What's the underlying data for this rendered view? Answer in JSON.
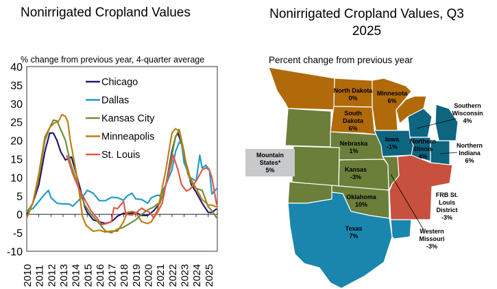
{
  "chart_data": [
    {
      "type": "line",
      "title": "Nonirrigated Cropland Values",
      "ylabel": "% change from previous year, 4-quarter average",
      "xlim": [
        2010,
        2025.75
      ],
      "ylim": [
        -10,
        40
      ],
      "yticks": [
        -10,
        -5,
        0,
        5,
        10,
        15,
        20,
        25,
        30,
        35,
        40
      ],
      "xticks": [
        "2010",
        "2011",
        "2012",
        "2013",
        "2014",
        "2015",
        "2016",
        "2017",
        "2018",
        "2019",
        "2020",
        "2021",
        "2022",
        "2023",
        "2024",
        "2025"
      ],
      "legend": "top-center",
      "grid": false,
      "series": [
        {
          "name": "Chicago",
          "color": "#1f1a6e",
          "points": [
            [
              2010,
              0
            ],
            [
              2010.5,
              3
            ],
            [
              2011,
              8
            ],
            [
              2011.5,
              17
            ],
            [
              2011.9,
              22
            ],
            [
              2012.2,
              22
            ],
            [
              2012.5,
              20
            ],
            [
              2012.8,
              17
            ],
            [
              2013.2,
              14.7
            ],
            [
              2013.5,
              15.3
            ],
            [
              2013.7,
              15.5
            ],
            [
              2014,
              12
            ],
            [
              2014.5,
              6
            ],
            [
              2014.8,
              2
            ],
            [
              2015,
              0.5
            ],
            [
              2015.5,
              -1.5
            ],
            [
              2016,
              -2
            ],
            [
              2016.5,
              -2.5
            ],
            [
              2017,
              -2
            ],
            [
              2017.5,
              -0.5
            ],
            [
              2018,
              0.3
            ],
            [
              2018.5,
              0.2
            ],
            [
              2019,
              0.5
            ],
            [
              2019.5,
              -0.3
            ],
            [
              2020,
              -0.3
            ],
            [
              2020.5,
              1
            ],
            [
              2021,
              3
            ],
            [
              2021.5,
              8
            ],
            [
              2022,
              17
            ],
            [
              2022.3,
              21
            ],
            [
              2022.5,
              22
            ],
            [
              2022.8,
              19
            ],
            [
              2023.2,
              13
            ],
            [
              2023.6,
              8
            ],
            [
              2024,
              6
            ],
            [
              2024.5,
              3
            ],
            [
              2025,
              0.5
            ],
            [
              2025.3,
              0.5
            ],
            [
              2025.7,
              1.5
            ]
          ]
        },
        {
          "name": "Dallas",
          "color": "#1e9bc6",
          "points": [
            [
              2010,
              1
            ],
            [
              2010.5,
              1.5
            ],
            [
              2011,
              3.5
            ],
            [
              2011.5,
              5.5
            ],
            [
              2011.8,
              6.5
            ],
            [
              2012,
              4.5
            ],
            [
              2012.5,
              3
            ],
            [
              2013,
              2.8
            ],
            [
              2013.5,
              2.8
            ],
            [
              2013.8,
              2.2
            ],
            [
              2014.2,
              3.5
            ],
            [
              2014.8,
              5.5
            ],
            [
              2015,
              6.5
            ],
            [
              2015.5,
              5.7
            ],
            [
              2016,
              3.7
            ],
            [
              2016.5,
              3.7
            ],
            [
              2017,
              4.6
            ],
            [
              2017.5,
              4.5
            ],
            [
              2018,
              3.8
            ],
            [
              2018.3,
              5
            ],
            [
              2018.7,
              5.7
            ],
            [
              2019,
              4.2
            ],
            [
              2019.5,
              4
            ],
            [
              2020,
              3
            ],
            [
              2020.3,
              4.5
            ],
            [
              2020.8,
              5.2
            ],
            [
              2021,
              5
            ],
            [
              2021.5,
              8
            ],
            [
              2022,
              12
            ],
            [
              2022.3,
              17
            ],
            [
              2022.6,
              19.5
            ],
            [
              2022.8,
              19
            ],
            [
              2023,
              14
            ],
            [
              2023.5,
              10
            ],
            [
              2024,
              9
            ],
            [
              2024.3,
              16
            ],
            [
              2024.5,
              12.5
            ],
            [
              2024.8,
              13.3
            ],
            [
              2025.1,
              12
            ],
            [
              2025.3,
              5.5
            ],
            [
              2025.7,
              7
            ]
          ]
        },
        {
          "name": "Kansas City",
          "color": "#6e8f3a",
          "points": [
            [
              2010,
              0.5
            ],
            [
              2010.5,
              3
            ],
            [
              2011,
              10
            ],
            [
              2011.5,
              20
            ],
            [
              2011.9,
              23.5
            ],
            [
              2012.2,
              25.5
            ],
            [
              2012.5,
              25.3
            ],
            [
              2012.8,
              23
            ],
            [
              2013.2,
              20
            ],
            [
              2013.6,
              14
            ],
            [
              2014,
              10
            ],
            [
              2014.5,
              5
            ],
            [
              2014.8,
              2.5
            ],
            [
              2015.2,
              0.5
            ],
            [
              2015.6,
              -1
            ],
            [
              2016,
              -2.5
            ],
            [
              2016.5,
              -4.5
            ],
            [
              2017,
              -5
            ],
            [
              2017.5,
              -4
            ],
            [
              2018,
              -3.5
            ],
            [
              2018.5,
              -2.5
            ],
            [
              2019,
              -1.5
            ],
            [
              2019.5,
              0
            ],
            [
              2020,
              1.2
            ],
            [
              2020.5,
              2
            ],
            [
              2020.8,
              2.8
            ],
            [
              2021,
              3
            ],
            [
              2021.5,
              8
            ],
            [
              2022,
              16
            ],
            [
              2022.3,
              21
            ],
            [
              2022.6,
              23
            ],
            [
              2023,
              17
            ],
            [
              2023.3,
              11
            ],
            [
              2023.7,
              8
            ],
            [
              2024,
              7
            ],
            [
              2024.5,
              6.5
            ],
            [
              2025,
              2
            ],
            [
              2025.3,
              1
            ],
            [
              2025.7,
              -1
            ]
          ]
        },
        {
          "name": "Minneapolis",
          "color": "#c07d12",
          "points": [
            [
              2010,
              -1
            ],
            [
              2010.5,
              3
            ],
            [
              2011,
              11
            ],
            [
              2011.5,
              21
            ],
            [
              2011.9,
              23.5
            ],
            [
              2012.3,
              24.8
            ],
            [
              2012.6,
              25
            ],
            [
              2012.9,
              27
            ],
            [
              2013.2,
              26.5
            ],
            [
              2013.4,
              25
            ],
            [
              2013.6,
              20
            ],
            [
              2014,
              13
            ],
            [
              2014.3,
              7
            ],
            [
              2014.6,
              -0.5
            ],
            [
              2014.9,
              -3
            ],
            [
              2015.2,
              -3.8
            ],
            [
              2015.5,
              -4.6
            ],
            [
              2016,
              -4.3
            ],
            [
              2016.5,
              -4.8
            ],
            [
              2017,
              -4.5
            ],
            [
              2017.5,
              -4.6
            ],
            [
              2018,
              -2
            ],
            [
              2018.3,
              0.5
            ],
            [
              2018.7,
              0.8
            ],
            [
              2019,
              0.5
            ],
            [
              2019.5,
              -2
            ],
            [
              2020,
              -2.5
            ],
            [
              2020.3,
              -2
            ],
            [
              2020.8,
              1
            ],
            [
              2021,
              4
            ],
            [
              2021.5,
              12
            ],
            [
              2022,
              22
            ],
            [
              2022.3,
              23.2
            ],
            [
              2022.6,
              22.5
            ],
            [
              2023,
              16
            ],
            [
              2023.5,
              10
            ],
            [
              2024,
              7
            ],
            [
              2024.5,
              4
            ],
            [
              2025,
              2.5
            ],
            [
              2025.3,
              2.5
            ],
            [
              2025.7,
              2
            ]
          ]
        },
        {
          "name": "St. Louis",
          "color": "#e0584a",
          "points": [
            [
              2013.3,
              16
            ],
            [
              2013.8,
              11
            ],
            [
              2014.3,
              7
            ],
            [
              2014.8,
              4
            ],
            [
              2015.3,
              1
            ],
            [
              2015.8,
              -1
            ],
            [
              2016.2,
              -2.8
            ],
            [
              2016.6,
              -2.5
            ],
            [
              2017,
              -2
            ],
            [
              2017.2,
              1.8
            ],
            [
              2017.5,
              1.5
            ],
            [
              2018,
              3.5
            ],
            [
              2018.2,
              0
            ],
            [
              2018.7,
              -0.2
            ],
            [
              2019,
              0.3
            ],
            [
              2019.5,
              1.7
            ],
            [
              2019.8,
              1
            ],
            [
              2020.2,
              0.5
            ],
            [
              2020.5,
              -1
            ],
            [
              2020.8,
              0.5
            ],
            [
              2021.2,
              3
            ],
            [
              2021.5,
              8
            ],
            [
              2021.9,
              13
            ],
            [
              2022.1,
              16
            ],
            [
              2022.5,
              12
            ],
            [
              2022.8,
              8
            ],
            [
              2023.2,
              6.3
            ],
            [
              2023.5,
              6.8
            ],
            [
              2024,
              9
            ],
            [
              2024.5,
              12
            ],
            [
              2024.8,
              12.6
            ],
            [
              2025.1,
              12
            ],
            [
              2025.3,
              10
            ],
            [
              2025.7,
              2.5
            ]
          ]
        }
      ]
    }
  ],
  "map": {
    "title": "Nonirrigated Cropland Values, Q3 2025",
    "subtitle": "Percent change from previous year",
    "colors": {
      "minneapolis": "#b06a0a",
      "kansas_city": "#6b7f3a",
      "chicago": "#0d6580",
      "dallas": "#1a86ad",
      "st_louis": "#c8503e",
      "mountain": "#c8c9cb"
    },
    "regions": [
      {
        "name": "North Dakota",
        "value": "0%"
      },
      {
        "name": "Minnesota",
        "value": "6%"
      },
      {
        "name": "South Dakota",
        "value": "6%"
      },
      {
        "name": "Nebraska",
        "value": "1%"
      },
      {
        "name": "Iowa",
        "value": "-1%"
      },
      {
        "name": "Northern Illinois",
        "value": "4%"
      },
      {
        "name": "Kansas",
        "value": "-3%"
      },
      {
        "name": "Oklahoma",
        "value": "10%"
      },
      {
        "name": "Texas",
        "value": "7%"
      },
      {
        "name": "Southern Wisconsin",
        "value": "4%"
      },
      {
        "name": "Northern Indiana",
        "value": "6%"
      },
      {
        "name": "FRB St. Louis District",
        "value": "-3%"
      },
      {
        "name": "Western Missouri",
        "value": "-3%"
      },
      {
        "name": "Mountain States*",
        "value": "5%"
      }
    ]
  }
}
